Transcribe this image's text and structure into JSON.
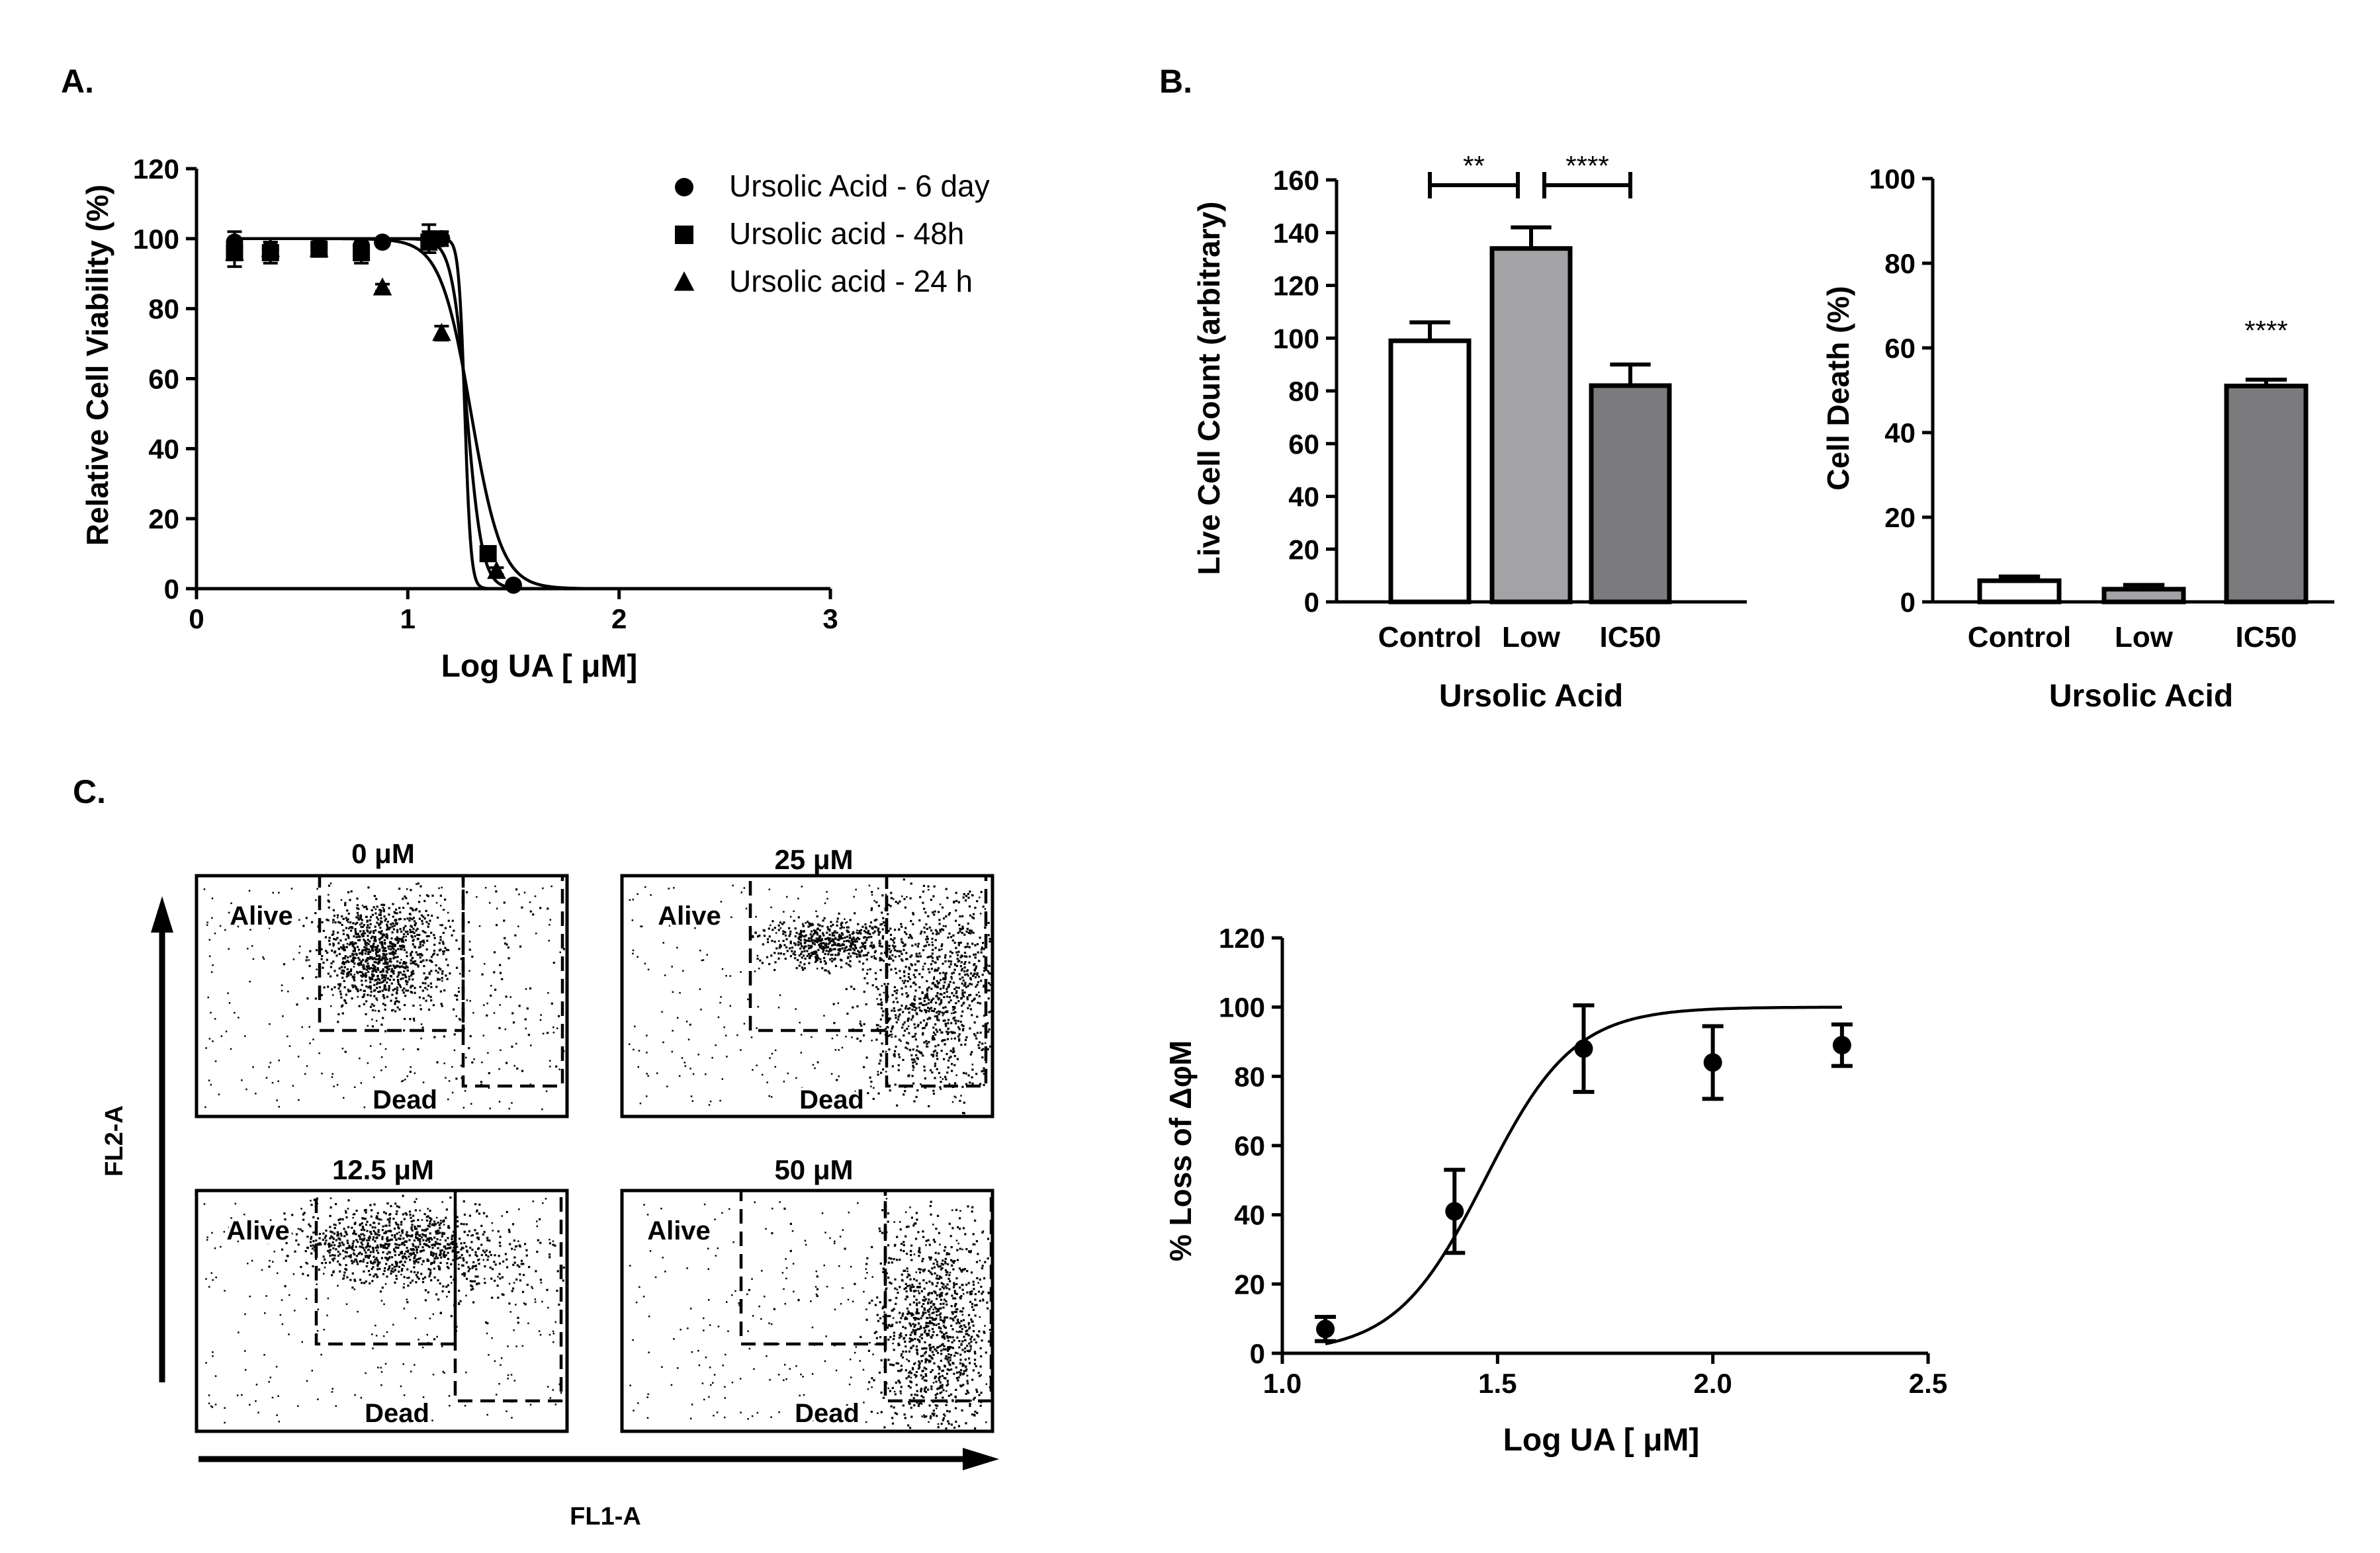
{
  "panels": {
    "a": "A.",
    "b": "B.",
    "c": "C."
  },
  "chart_data": [
    {
      "id": "A",
      "type": "scatter",
      "xlabel": "Log UA [ μM]",
      "ylabel": "Relative Cell  Viability (%)",
      "xlim": [
        0,
        3
      ],
      "ylim": [
        0,
        120
      ],
      "xticks": [
        0,
        1,
        2,
        3
      ],
      "yticks": [
        0,
        20,
        40,
        60,
        80,
        100,
        120
      ],
      "legend_position": "top-right",
      "series": [
        {
          "name": "Ursolic Acid - 6 day",
          "marker": "circle",
          "x": [
            0.18,
            0.35,
            0.58,
            0.78,
            0.88,
            1.1,
            1.16,
            1.5
          ],
          "y": [
            99,
            97,
            98,
            98,
            99,
            100,
            100,
            1
          ],
          "err": [
            3,
            3,
            2,
            2,
            1,
            4,
            2,
            1
          ],
          "fit": {
            "top": 100,
            "bottom": 0,
            "log_ic50": 1.27,
            "hill": 30
          }
        },
        {
          "name": "Ursolic acid - 48h",
          "marker": "square",
          "x": [
            0.18,
            0.35,
            0.58,
            0.78,
            1.1,
            1.38
          ],
          "y": [
            96,
            96,
            97,
            96,
            99,
            10
          ],
          "err": [
            4,
            3,
            2,
            3,
            3,
            2
          ],
          "fit": {
            "top": 100,
            "bottom": 0,
            "log_ic50": 1.28,
            "hill": 12
          }
        },
        {
          "name": "Ursolic acid - 24 h",
          "marker": "triangle",
          "x": [
            0.18,
            0.35,
            0.58,
            0.88,
            1.16,
            1.42
          ],
          "y": [
            96,
            97,
            97,
            86,
            73,
            5
          ],
          "err": [
            2,
            2,
            2,
            1,
            2,
            1
          ],
          "fit": {
            "top": 100,
            "bottom": 0,
            "log_ic50": 1.3,
            "hill": 6
          }
        }
      ]
    },
    {
      "id": "B1",
      "type": "bar",
      "categories": [
        "Control",
        "Low",
        "IC50"
      ],
      "values": [
        99,
        134,
        82
      ],
      "errors": [
        7,
        8,
        8
      ],
      "colors": [
        "#ffffff",
        "#a3a3a6",
        "#7b7b7e"
      ],
      "xlabel": "Ursolic  Acid",
      "ylabel": "Live Cell Count (arbitrary)",
      "ylim": [
        0,
        160
      ],
      "yticks": [
        0,
        20,
        40,
        60,
        80,
        100,
        120,
        140,
        160
      ],
      "significance": [
        {
          "from": 0,
          "to": 1,
          "label": "**"
        },
        {
          "from": 1,
          "to": 2,
          "label": "****"
        }
      ]
    },
    {
      "id": "B2",
      "type": "bar",
      "categories": [
        "Control",
        "Low",
        "IC50"
      ],
      "values": [
        5,
        3,
        51
      ],
      "errors": [
        1,
        1,
        1.5
      ],
      "colors": [
        "#ffffff",
        "#a3a3a6",
        "#7b7b7e"
      ],
      "xlabel": "Ursolic  Acid",
      "ylabel": "Cell Death (%)",
      "ylim": [
        0,
        100
      ],
      "yticks": [
        0,
        20,
        40,
        60,
        80,
        100
      ],
      "annotations": [
        {
          "category": 2,
          "label": "****"
        }
      ]
    },
    {
      "id": "C_flow",
      "type": "scatter",
      "xlabel": "FL1-A",
      "ylabel": "FL2-A",
      "plots": [
        {
          "title": "0 μM",
          "alive_label": "Alive",
          "dead_label": "Dead"
        },
        {
          "title": "25 μM",
          "alive_label": "Alive",
          "dead_label": "Dead"
        },
        {
          "title": "12.5 μM",
          "alive_label": "Alive",
          "dead_label": "Dead"
        },
        {
          "title": "50 μM",
          "alive_label": "Alive",
          "dead_label": "Dead"
        }
      ]
    },
    {
      "id": "C_curve",
      "type": "scatter",
      "xlabel": "Log UA [ μM]",
      "ylabel": "% Loss of ΔφM",
      "xlim": [
        1.0,
        2.5
      ],
      "ylim": [
        0,
        120
      ],
      "xticks": [
        "1.0",
        "1.5",
        "2.0",
        "2.5"
      ],
      "yticks": [
        0,
        20,
        40,
        60,
        80,
        100,
        120
      ],
      "x": [
        1.1,
        1.4,
        1.7,
        2.0,
        2.3
      ],
      "y": [
        7,
        41,
        88,
        84,
        89
      ],
      "err": [
        3.5,
        12,
        12.5,
        10.5,
        6
      ],
      "fit": {
        "top": 100,
        "bottom": 0,
        "log_ec50": 1.47,
        "hill": 4.2
      }
    }
  ]
}
